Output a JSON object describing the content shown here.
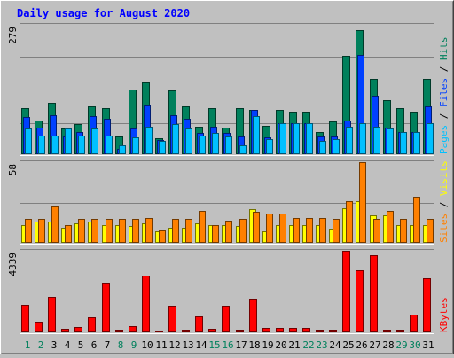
{
  "chart_data": {
    "type": "bar",
    "title": "Daily usage for August 2020",
    "days": [
      "1",
      "2",
      "3",
      "4",
      "5",
      "6",
      "7",
      "8",
      "9",
      "10",
      "11",
      "12",
      "13",
      "14",
      "15",
      "16",
      "17",
      "18",
      "19",
      "20",
      "21",
      "22",
      "23",
      "24",
      "25",
      "26",
      "27",
      "28",
      "29",
      "30",
      "31"
    ],
    "weekend_days": [
      "1",
      "2",
      "8",
      "9",
      "15",
      "16",
      "22",
      "23",
      "29",
      "30"
    ],
    "panels": [
      {
        "id": "hits-files-pages",
        "ymax_label": "279",
        "ylim": [
          0,
          279
        ],
        "legend": [
          {
            "label": "Pages",
            "color": "#00c0ff"
          },
          {
            "label": "Files",
            "color": "#0040ff"
          },
          {
            "label": "Hits",
            "color": "#00805c"
          }
        ],
        "series": [
          {
            "name": "Hits",
            "color": "#00805c",
            "values": [
              100,
              72,
              110,
              55,
              65,
              104,
              100,
              38,
              140,
              155,
              35,
              138,
              104,
              60,
              100,
              58,
              100,
              96,
              62,
              96,
              92,
              92,
              48,
              70,
              212,
              268,
              162,
              116,
              100,
              92,
              162
            ]
          },
          {
            "name": "Files",
            "color": "#0040ff",
            "values": [
              80,
              58,
              84,
              38,
              48,
              82,
              76,
              12,
              56,
              106,
              30,
              85,
              76,
              46,
              60,
              46,
              38,
              96,
              36,
              66,
              66,
              66,
              38,
              38,
              72,
              214,
              126,
              58,
              48,
              48,
              104
            ]
          },
          {
            "name": "Pages",
            "color": "#00c0ff",
            "values": [
              55,
              40,
              40,
              55,
              40,
              55,
              40,
              20,
              36,
              60,
              28,
              65,
              55,
              40,
              45,
              38,
              20,
              82,
              33,
              66,
              66,
              66,
              28,
              33,
              60,
              66,
              60,
              55,
              48,
              48,
              66
            ]
          }
        ]
      },
      {
        "id": "visits-sites",
        "ymax_label": "58",
        "ylim": [
          0,
          58
        ],
        "legend": [
          {
            "label": "Sites",
            "color": "#ff8000"
          },
          {
            "label": "Visits",
            "color": "#ffff00"
          }
        ],
        "series": [
          {
            "name": "Visits",
            "color": "#ffff00",
            "values": [
              13,
              15,
              15,
              11,
              14,
              15,
              13,
              13,
              12,
              14,
              8,
              11,
              11,
              14,
              13,
              13,
              12,
              24,
              8,
              13,
              13,
              13,
              13,
              10,
              25,
              30,
              20,
              20,
              13,
              13,
              13
            ]
          },
          {
            "name": "Sites",
            "color": "#ff8000",
            "values": [
              17,
              17,
              26,
              13,
              17,
              17,
              17,
              17,
              17,
              18,
              9,
              17,
              17,
              23,
              13,
              16,
              17,
              22,
              21,
              21,
              18,
              18,
              18,
              17,
              30,
              58,
              17,
              23,
              17,
              33,
              17
            ]
          }
        ]
      },
      {
        "id": "kbytes",
        "ymax_label": "4339",
        "ylim": [
          0,
          4339
        ],
        "legend": [
          {
            "label": "KBytes",
            "color": "#ff0000"
          }
        ],
        "series": [
          {
            "name": "KBytes",
            "color": "#ff0000",
            "values": [
              1480,
              560,
              1870,
              200,
              280,
              820,
              2640,
              140,
              310,
              3020,
              110,
              1430,
              155,
              840,
              175,
              1430,
              160,
              1770,
              240,
              215,
              240,
              240,
              120,
              120,
              4339,
              3300,
              4080,
              155,
              155,
              950,
              2870
            ]
          }
        ]
      }
    ]
  }
}
